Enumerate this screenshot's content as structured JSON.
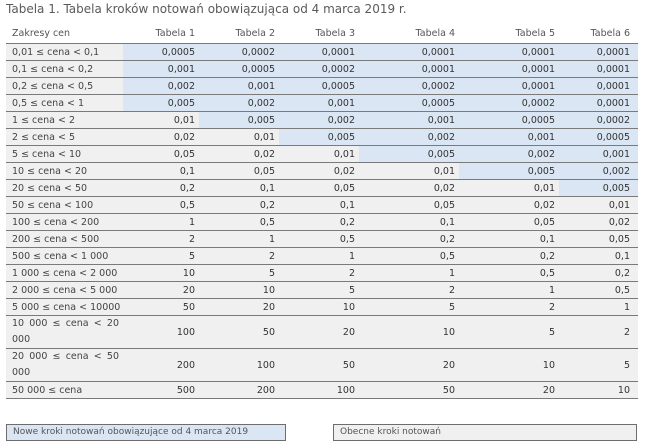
{
  "caption": "Tabela 1. Tabela kroków notowań obowiązująca od 4 marca 2019 r.",
  "headers": [
    "Zakresy cen",
    "Tabela 1",
    "Tabela 2",
    "Tabela 3",
    "Tabela 4",
    "Tabela 5",
    "Tabela 6"
  ],
  "rows": [
    {
      "range": "0,01 ≤ cena < 0,1",
      "values": [
        "0,0005",
        "0,0002",
        "0,0001",
        "0,0001",
        "0,0001",
        "0,0001"
      ]
    },
    {
      "range": "0,1 ≤ cena < 0,2",
      "values": [
        "0,001",
        "0,0005",
        "0,0002",
        "0,0001",
        "0,0001",
        "0,0001"
      ]
    },
    {
      "range": "0,2 ≤ cena < 0,5",
      "values": [
        "0,002",
        "0,001",
        "0,0005",
        "0,0002",
        "0,0001",
        "0,0001"
      ]
    },
    {
      "range": "0,5 ≤ cena < 1",
      "values": [
        "0,005",
        "0,002",
        "0,001",
        "0,0005",
        "0,0002",
        "0,0001"
      ]
    },
    {
      "range": "1 ≤ cena < 2",
      "values": [
        "0,01",
        "0,005",
        "0,002",
        "0,001",
        "0,0005",
        "0,0002"
      ]
    },
    {
      "range": "2 ≤ cena < 5",
      "values": [
        "0,02",
        "0,01",
        "0,005",
        "0,002",
        "0,001",
        "0,0005"
      ]
    },
    {
      "range": "5 ≤ cena < 10",
      "values": [
        "0,05",
        "0,02",
        "0,01",
        "0,005",
        "0,002",
        "0,001"
      ]
    },
    {
      "range": "10 ≤ cena < 20",
      "values": [
        "0,1",
        "0,05",
        "0,02",
        "0,01",
        "0,005",
        "0,002"
      ]
    },
    {
      "range": "20 ≤ cena < 50",
      "values": [
        "0,2",
        "0,1",
        "0,05",
        "0,02",
        "0,01",
        "0,005"
      ]
    },
    {
      "range": "50 ≤ cena < 100",
      "values": [
        "0,5",
        "0,2",
        "0,1",
        "0,05",
        "0,02",
        "0,01"
      ]
    },
    {
      "range": "100 ≤ cena < 200",
      "values": [
        "1",
        "0,5",
        "0,2",
        "0,1",
        "0,05",
        "0,02"
      ]
    },
    {
      "range": "200 ≤ cena < 500",
      "values": [
        "2",
        "1",
        "0,5",
        "0,2",
        "0,1",
        "0,05"
      ]
    },
    {
      "range": "500 ≤ cena < 1 000",
      "values": [
        "5",
        "2",
        "1",
        "0,5",
        "0,2",
        "0,1"
      ]
    },
    {
      "range": "1 000 ≤ cena < 2 000",
      "values": [
        "10",
        "5",
        "2",
        "1",
        "0,5",
        "0,2"
      ]
    },
    {
      "range": "2 000 ≤ cena < 5 000",
      "values": [
        "20",
        "10",
        "5",
        "2",
        "1",
        "0,5"
      ]
    },
    {
      "range": "5 000 ≤ cena < 10000",
      "values": [
        "50",
        "20",
        "10",
        "5",
        "2",
        "1"
      ]
    },
    {
      "range": "10 000 ≤ cena < 20 000",
      "values": [
        "100",
        "50",
        "20",
        "10",
        "5",
        "2"
      ]
    },
    {
      "range": "20 000 ≤ cena < 50 000",
      "values": [
        "200",
        "100",
        "50",
        "20",
        "10",
        "5"
      ]
    },
    {
      "range": "50 000 ≤ cena",
      "values": [
        "500",
        "200",
        "100",
        "50",
        "20",
        "10"
      ]
    }
  ],
  "legend": {
    "new_label": "Nowe kroki notowań obowiązujące od 4 marca 2019",
    "old_label": "Obecne kroki notowań"
  },
  "colors": {
    "new_steps": "#dbe6f4",
    "current_steps": "#f0f0f0"
  }
}
